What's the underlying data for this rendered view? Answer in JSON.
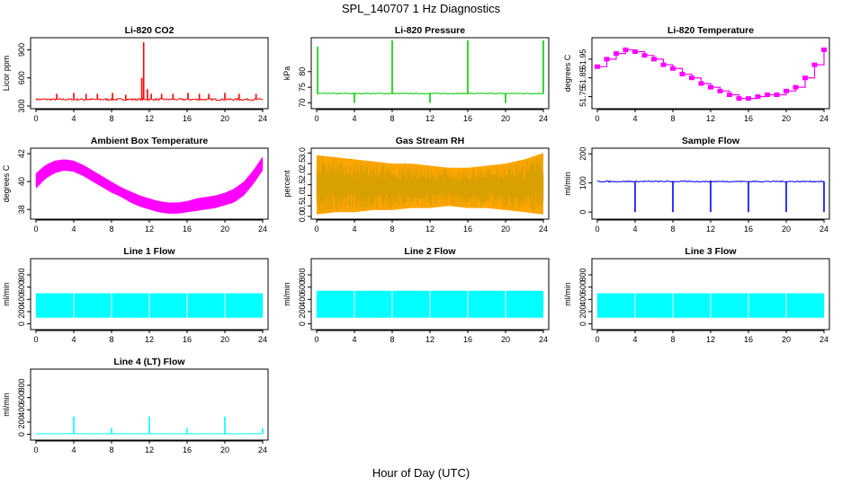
{
  "figure": {
    "title": "SPL_140707  1 Hz Diagnostics",
    "xlabel": "Hour of Day (UTC)"
  },
  "chart_data": [
    {
      "id": "co2",
      "type": "line",
      "title": "Li-820 CO2",
      "ylabel": "Licor ppm",
      "color": "#ff0000",
      "xlim": [
        0,
        24
      ],
      "ylim": [
        300,
        1000
      ],
      "xticks": [
        0,
        4,
        8,
        12,
        16,
        20,
        24
      ],
      "yticks": [
        300,
        600,
        900
      ],
      "baseline": 370,
      "noise": 10,
      "spikes": [
        [
          2.2,
          430
        ],
        [
          4,
          440
        ],
        [
          5.3,
          430
        ],
        [
          6.5,
          430
        ],
        [
          8.1,
          440
        ],
        [
          9.5,
          420
        ],
        [
          11.2,
          600
        ],
        [
          11.4,
          980
        ],
        [
          11.8,
          480
        ],
        [
          12.2,
          430
        ],
        [
          13.3,
          430
        ],
        [
          14.5,
          430
        ],
        [
          16.1,
          440
        ],
        [
          17.3,
          430
        ],
        [
          18.3,
          430
        ],
        [
          20,
          440
        ],
        [
          21.5,
          430
        ],
        [
          23.3,
          430
        ]
      ]
    },
    {
      "id": "pressure",
      "type": "line",
      "title": "Li-820 Pressure",
      "ylabel": "kPa",
      "color": "#00cc00",
      "xlim": [
        0,
        24
      ],
      "ylim": [
        69,
        90
      ],
      "xticks": [
        0,
        4,
        8,
        12,
        16,
        20,
        24
      ],
      "yticks": [
        70,
        75,
        80
      ],
      "baseline": 73,
      "noise": 0.15,
      "spikes": [
        [
          0.1,
          88
        ],
        [
          4,
          70
        ],
        [
          8,
          90
        ],
        [
          12,
          70
        ],
        [
          16,
          90
        ],
        [
          20,
          70
        ],
        [
          24,
          90
        ]
      ]
    },
    {
      "id": "temp",
      "type": "step",
      "title": "Li-820 Temperature",
      "ylabel": "degrees C",
      "color": "#ff00ff",
      "xlim": [
        0,
        24
      ],
      "ylim": [
        51.7,
        52.05
      ],
      "xticks": [
        0,
        4,
        8,
        12,
        16,
        20,
        24
      ],
      "yticks": [
        51.75,
        51.85,
        51.95
      ],
      "x": [
        0,
        1,
        2,
        3,
        4,
        5,
        6,
        7,
        8,
        9,
        10,
        11,
        12,
        13,
        14,
        15,
        16,
        17,
        18,
        19,
        20,
        21,
        22,
        23,
        24
      ],
      "y": [
        51.91,
        51.95,
        51.98,
        52.0,
        51.99,
        51.97,
        51.95,
        51.92,
        51.9,
        51.87,
        51.85,
        51.82,
        51.8,
        51.78,
        51.76,
        51.74,
        51.74,
        51.75,
        51.76,
        51.76,
        51.78,
        51.8,
        51.85,
        51.92,
        52.0
      ]
    },
    {
      "id": "ambient",
      "type": "band",
      "title": "Ambient Box Temperature",
      "ylabel": "degrees C",
      "color": "#ff00ff",
      "xlim": [
        0,
        24
      ],
      "ylim": [
        37.5,
        42.2
      ],
      "xticks": [
        0,
        4,
        8,
        12,
        16,
        20,
        24
      ],
      "yticks": [
        38,
        40,
        42
      ],
      "x": [
        0,
        1,
        2,
        3,
        4,
        5,
        6,
        7,
        8,
        9,
        10,
        11,
        12,
        13,
        14,
        15,
        16,
        17,
        18,
        19,
        20,
        21,
        22,
        23,
        24
      ],
      "low": [
        39.5,
        40.2,
        40.6,
        40.8,
        40.7,
        40.4,
        40.0,
        39.6,
        39.2,
        38.9,
        38.5,
        38.2,
        38.0,
        37.8,
        37.7,
        37.7,
        37.8,
        37.9,
        38.0,
        38.1,
        38.3,
        38.5,
        39.0,
        39.8,
        40.8
      ],
      "high": [
        40.6,
        41.2,
        41.5,
        41.6,
        41.5,
        41.2,
        40.8,
        40.4,
        40.0,
        39.6,
        39.3,
        39.0,
        38.8,
        38.6,
        38.5,
        38.5,
        38.6,
        38.8,
        38.9,
        39.0,
        39.2,
        39.5,
        40.0,
        40.8,
        41.8
      ]
    },
    {
      "id": "rh",
      "type": "band",
      "title": "Gas Stream RH",
      "ylabel": "percent",
      "color": "#ffa500",
      "stroke": "#d4a000",
      "xlim": [
        0,
        24
      ],
      "ylim": [
        0,
        3.1
      ],
      "xticks": [
        0,
        4,
        8,
        12,
        16,
        20,
        24
      ],
      "yticks": [
        0.0,
        0.5,
        1.0,
        1.5,
        2.0,
        2.5,
        3.0
      ],
      "x": [
        0,
        2,
        4,
        6,
        8,
        10,
        12,
        14,
        16,
        18,
        20,
        22,
        24
      ],
      "low": [
        0.1,
        0.2,
        0.2,
        0.3,
        0.3,
        0.4,
        0.4,
        0.5,
        0.4,
        0.4,
        0.3,
        0.2,
        0.1
      ],
      "high": [
        2.9,
        2.8,
        2.7,
        2.6,
        2.5,
        2.5,
        2.4,
        2.3,
        2.3,
        2.4,
        2.5,
        2.7,
        3.0
      ]
    },
    {
      "id": "sample",
      "type": "line",
      "title": "Sample Flow",
      "ylabel": "ml/min",
      "color": "#0000ff",
      "xlim": [
        0,
        24
      ],
      "ylim": [
        -15,
        210
      ],
      "xticks": [
        0,
        4,
        8,
        12,
        16,
        20,
        24
      ],
      "yticks": [
        0,
        100,
        200
      ],
      "baseline": 105,
      "noise": 2,
      "spikes": [
        [
          4,
          0
        ],
        [
          8,
          0
        ],
        [
          12,
          0
        ],
        [
          16,
          0
        ],
        [
          20,
          0
        ],
        [
          24,
          0
        ]
      ]
    },
    {
      "id": "line1",
      "type": "band",
      "title": "Line 1 Flow",
      "ylabel": "ml/min",
      "color": "#00ffff",
      "xlim": [
        0,
        24
      ],
      "ylim": [
        -50,
        1020
      ],
      "xticks": [
        0,
        4,
        8,
        12,
        16,
        20,
        24
      ],
      "yticks": [
        0,
        200,
        400,
        600,
        800
      ],
      "x": [
        0,
        24
      ],
      "low": [
        100,
        100
      ],
      "high": [
        500,
        500
      ],
      "dips": [
        4,
        8,
        12,
        16,
        20
      ]
    },
    {
      "id": "line2",
      "type": "band",
      "title": "Line 2 Flow",
      "ylabel": "ml/min",
      "color": "#00ffff",
      "xlim": [
        0,
        24
      ],
      "ylim": [
        -50,
        1020
      ],
      "xticks": [
        0,
        4,
        8,
        12,
        16,
        20,
        24
      ],
      "yticks": [
        0,
        200,
        400,
        600,
        800
      ],
      "x": [
        0,
        24
      ],
      "low": [
        100,
        100
      ],
      "high": [
        540,
        540
      ],
      "dips": [
        4,
        8,
        12,
        16,
        20
      ]
    },
    {
      "id": "line3",
      "type": "band",
      "title": "Line 3 Flow",
      "ylabel": "ml/min",
      "color": "#00ffff",
      "xlim": [
        0,
        24
      ],
      "ylim": [
        -50,
        1020
      ],
      "xticks": [
        0,
        4,
        8,
        12,
        16,
        20,
        24
      ],
      "yticks": [
        0,
        200,
        400,
        600,
        800
      ],
      "x": [
        0,
        24
      ],
      "low": [
        100,
        100
      ],
      "high": [
        500,
        500
      ],
      "dips": [
        4,
        8,
        12,
        16,
        20
      ]
    },
    {
      "id": "line4",
      "type": "line",
      "title": "Line 4 (LT) Flow",
      "ylabel": "ml/min",
      "color": "#00ffff",
      "xlim": [
        0,
        24
      ],
      "ylim": [
        -50,
        1020
      ],
      "xticks": [
        0,
        4,
        8,
        12,
        16,
        20,
        24
      ],
      "yticks": [
        0,
        200,
        400,
        600,
        800
      ],
      "baseline": 10,
      "noise": 2,
      "spikes": [
        [
          4,
          290
        ],
        [
          8,
          100
        ],
        [
          12,
          290
        ],
        [
          16,
          100
        ],
        [
          20,
          290
        ],
        [
          24,
          100
        ]
      ]
    }
  ]
}
